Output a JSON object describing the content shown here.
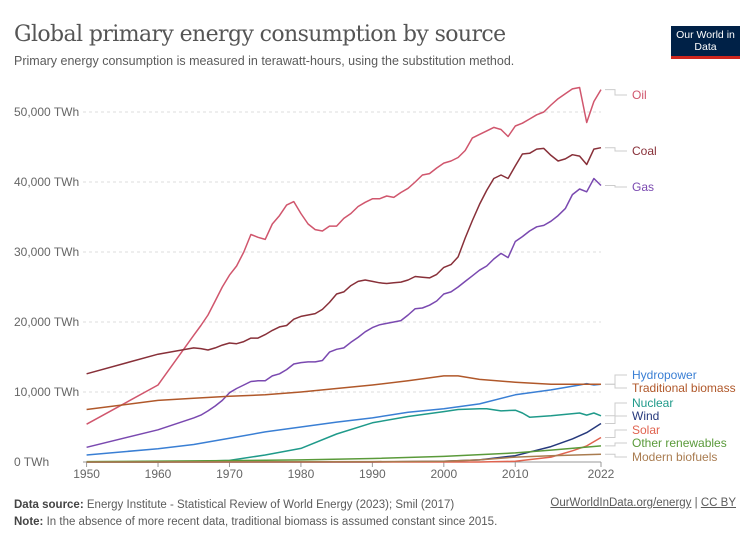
{
  "header": {
    "title": "Global primary energy consumption by source",
    "subtitle": "Primary energy consumption is measured in terawatt-hours, using the substitution method.",
    "logo_text": "Our World in Data"
  },
  "footer": {
    "source_label": "Data source:",
    "source_text": "Energy Institute - Statistical Review of World Energy (2023); Smil (2017)",
    "note_label": "Note:",
    "note_text": "In the absence of more recent data, traditional biomass is assumed constant since 2015.",
    "link": "OurWorldInData.org/energy",
    "separator": "|",
    "license": "CC BY"
  },
  "chart_data": {
    "type": "line",
    "title": "Global primary energy consumption by source",
    "xlabel": "",
    "ylabel": "",
    "xlim": [
      1949.5,
      2022
    ],
    "ylim": [
      0,
      55000
    ],
    "grid": true,
    "legend": "right (inline labels)",
    "x_ticks": [
      "1950",
      "1960",
      "1970",
      "1980",
      "1990",
      "2000",
      "2010",
      "2022"
    ],
    "y_ticks": [
      "0 TWh",
      "10,000 TWh",
      "20,000 TWh",
      "30,000 TWh",
      "40,000 TWh",
      "50,000 TWh"
    ],
    "series": [
      {
        "name": "Oil",
        "color": "#d0566d",
        "points": [
          [
            1950,
            5400
          ],
          [
            1960,
            11000
          ],
          [
            1965,
            18100
          ],
          [
            1966,
            19500
          ],
          [
            1967,
            21000
          ],
          [
            1968,
            23000
          ],
          [
            1969,
            25000
          ],
          [
            1970,
            26700
          ],
          [
            1971,
            28000
          ],
          [
            1972,
            30000
          ],
          [
            1973,
            32500
          ],
          [
            1974,
            32100
          ],
          [
            1975,
            31800
          ],
          [
            1976,
            34000
          ],
          [
            1977,
            35200
          ],
          [
            1978,
            36700
          ],
          [
            1979,
            37200
          ],
          [
            1980,
            35500
          ],
          [
            1981,
            34000
          ],
          [
            1982,
            33200
          ],
          [
            1983,
            33000
          ],
          [
            1984,
            33700
          ],
          [
            1985,
            33700
          ],
          [
            1986,
            34800
          ],
          [
            1987,
            35500
          ],
          [
            1988,
            36500
          ],
          [
            1989,
            37100
          ],
          [
            1990,
            37600
          ],
          [
            1991,
            37600
          ],
          [
            1992,
            38000
          ],
          [
            1993,
            37800
          ],
          [
            1994,
            38500
          ],
          [
            1995,
            39100
          ],
          [
            1996,
            40000
          ],
          [
            1997,
            41000
          ],
          [
            1998,
            41200
          ],
          [
            1999,
            42000
          ],
          [
            2000,
            42700
          ],
          [
            2001,
            43000
          ],
          [
            2002,
            43500
          ],
          [
            2003,
            44500
          ],
          [
            2004,
            46300
          ],
          [
            2005,
            46800
          ],
          [
            2006,
            47300
          ],
          [
            2007,
            47800
          ],
          [
            2008,
            47500
          ],
          [
            2009,
            46500
          ],
          [
            2010,
            48000
          ],
          [
            2011,
            48400
          ],
          [
            2012,
            49000
          ],
          [
            2013,
            49600
          ],
          [
            2014,
            50000
          ],
          [
            2015,
            51000
          ],
          [
            2016,
            51900
          ],
          [
            2017,
            52600
          ],
          [
            2018,
            53300
          ],
          [
            2019,
            53500
          ],
          [
            2020,
            48500
          ],
          [
            2021,
            51500
          ],
          [
            2022,
            53200
          ]
        ]
      },
      {
        "name": "Coal",
        "color": "#883039",
        "points": [
          [
            1950,
            12600
          ],
          [
            1960,
            15400
          ],
          [
            1965,
            16300
          ],
          [
            1966,
            16200
          ],
          [
            1967,
            16000
          ],
          [
            1968,
            16300
          ],
          [
            1969,
            16700
          ],
          [
            1970,
            17000
          ],
          [
            1971,
            16900
          ],
          [
            1972,
            17200
          ],
          [
            1973,
            17700
          ],
          [
            1974,
            17700
          ],
          [
            1975,
            18200
          ],
          [
            1976,
            18800
          ],
          [
            1977,
            19300
          ],
          [
            1978,
            19500
          ],
          [
            1979,
            20400
          ],
          [
            1980,
            20800
          ],
          [
            1981,
            21000
          ],
          [
            1982,
            21200
          ],
          [
            1983,
            21800
          ],
          [
            1984,
            22800
          ],
          [
            1985,
            24000
          ],
          [
            1986,
            24300
          ],
          [
            1987,
            25200
          ],
          [
            1988,
            25800
          ],
          [
            1989,
            26000
          ],
          [
            1990,
            25800
          ],
          [
            1991,
            25600
          ],
          [
            1992,
            25500
          ],
          [
            1993,
            25600
          ],
          [
            1994,
            25700
          ],
          [
            1995,
            26000
          ],
          [
            1996,
            26500
          ],
          [
            1997,
            26400
          ],
          [
            1998,
            26300
          ],
          [
            1999,
            26800
          ],
          [
            2000,
            27800
          ],
          [
            2001,
            28200
          ],
          [
            2002,
            29300
          ],
          [
            2003,
            32000
          ],
          [
            2004,
            34500
          ],
          [
            2005,
            36800
          ],
          [
            2006,
            38800
          ],
          [
            2007,
            40500
          ],
          [
            2008,
            41000
          ],
          [
            2009,
            40500
          ],
          [
            2010,
            42300
          ],
          [
            2011,
            44000
          ],
          [
            2012,
            44100
          ],
          [
            2013,
            44700
          ],
          [
            2014,
            44800
          ],
          [
            2015,
            43800
          ],
          [
            2016,
            43000
          ],
          [
            2017,
            43300
          ],
          [
            2018,
            43900
          ],
          [
            2019,
            43700
          ],
          [
            2020,
            42500
          ],
          [
            2021,
            44700
          ],
          [
            2022,
            44900
          ]
        ]
      },
      {
        "name": "Gas",
        "color": "#7a49b0",
        "points": [
          [
            1950,
            2100
          ],
          [
            1960,
            4600
          ],
          [
            1965,
            6300
          ],
          [
            1966,
            6700
          ],
          [
            1967,
            7300
          ],
          [
            1968,
            8000
          ],
          [
            1969,
            8800
          ],
          [
            1970,
            9900
          ],
          [
            1971,
            10500
          ],
          [
            1972,
            11000
          ],
          [
            1973,
            11500
          ],
          [
            1974,
            11600
          ],
          [
            1975,
            11600
          ],
          [
            1976,
            12300
          ],
          [
            1977,
            12600
          ],
          [
            1978,
            13200
          ],
          [
            1979,
            14000
          ],
          [
            1980,
            14200
          ],
          [
            1981,
            14300
          ],
          [
            1982,
            14300
          ],
          [
            1983,
            14500
          ],
          [
            1984,
            15700
          ],
          [
            1985,
            16100
          ],
          [
            1986,
            16300
          ],
          [
            1987,
            17100
          ],
          [
            1988,
            17800
          ],
          [
            1989,
            18600
          ],
          [
            1990,
            19200
          ],
          [
            1991,
            19600
          ],
          [
            1992,
            19800
          ],
          [
            1993,
            20000
          ],
          [
            1994,
            20200
          ],
          [
            1995,
            21000
          ],
          [
            1996,
            21900
          ],
          [
            1997,
            22000
          ],
          [
            1998,
            22400
          ],
          [
            1999,
            23000
          ],
          [
            2000,
            24000
          ],
          [
            2001,
            24300
          ],
          [
            2002,
            25000
          ],
          [
            2003,
            25800
          ],
          [
            2004,
            26600
          ],
          [
            2005,
            27400
          ],
          [
            2006,
            28000
          ],
          [
            2007,
            29000
          ],
          [
            2008,
            29800
          ],
          [
            2009,
            29200
          ],
          [
            2010,
            31500
          ],
          [
            2011,
            32200
          ],
          [
            2012,
            33000
          ],
          [
            2013,
            33600
          ],
          [
            2014,
            33800
          ],
          [
            2015,
            34400
          ],
          [
            2016,
            35200
          ],
          [
            2017,
            36200
          ],
          [
            2018,
            38200
          ],
          [
            2019,
            39000
          ],
          [
            2020,
            38600
          ],
          [
            2021,
            40500
          ],
          [
            2022,
            39500
          ]
        ]
      },
      {
        "name": "Hydropower",
        "color": "#3a7fd4",
        "points": [
          [
            1950,
            1000
          ],
          [
            1960,
            1900
          ],
          [
            1965,
            2500
          ],
          [
            1970,
            3400
          ],
          [
            1975,
            4300
          ],
          [
            1980,
            5000
          ],
          [
            1985,
            5700
          ],
          [
            1990,
            6300
          ],
          [
            1995,
            7100
          ],
          [
            2000,
            7600
          ],
          [
            2005,
            8300
          ],
          [
            2010,
            9600
          ],
          [
            2015,
            10300
          ],
          [
            2019,
            11000
          ],
          [
            2020,
            11200
          ],
          [
            2021,
            11000
          ],
          [
            2022,
            11100
          ]
        ]
      },
      {
        "name": "Traditional biomass",
        "color": "#b0582a",
        "points": [
          [
            1950,
            7500
          ],
          [
            1960,
            8800
          ],
          [
            1965,
            9100
          ],
          [
            1970,
            9400
          ],
          [
            1975,
            9600
          ],
          [
            1980,
            10000
          ],
          [
            1985,
            10500
          ],
          [
            1990,
            11000
          ],
          [
            1995,
            11600
          ],
          [
            2000,
            12300
          ],
          [
            2002,
            12300
          ],
          [
            2005,
            11800
          ],
          [
            2010,
            11400
          ],
          [
            2015,
            11100
          ],
          [
            2022,
            11100
          ]
        ]
      },
      {
        "name": "Nuclear",
        "color": "#1f9a8a",
        "points": [
          [
            1950,
            0
          ],
          [
            1960,
            0
          ],
          [
            1965,
            80
          ],
          [
            1970,
            230
          ],
          [
            1975,
            1000
          ],
          [
            1980,
            1950
          ],
          [
            1985,
            4000
          ],
          [
            1990,
            5600
          ],
          [
            1995,
            6500
          ],
          [
            2000,
            7200
          ],
          [
            2002,
            7500
          ],
          [
            2005,
            7600
          ],
          [
            2006,
            7600
          ],
          [
            2008,
            7300
          ],
          [
            2010,
            7400
          ],
          [
            2011,
            7000
          ],
          [
            2012,
            6400
          ],
          [
            2015,
            6600
          ],
          [
            2019,
            7000
          ],
          [
            2020,
            6700
          ],
          [
            2021,
            7000
          ],
          [
            2022,
            6600
          ]
        ]
      },
      {
        "name": "Wind",
        "color": "#26397c",
        "points": [
          [
            1950,
            0
          ],
          [
            1990,
            0
          ],
          [
            2000,
            100
          ],
          [
            2005,
            300
          ],
          [
            2010,
            900
          ],
          [
            2015,
            2200
          ],
          [
            2018,
            3300
          ],
          [
            2020,
            4200
          ],
          [
            2022,
            5500
          ]
        ]
      },
      {
        "name": "Solar",
        "color": "#e0634f",
        "points": [
          [
            1950,
            0
          ],
          [
            2005,
            0
          ],
          [
            2010,
            100
          ],
          [
            2015,
            700
          ],
          [
            2018,
            1600
          ],
          [
            2020,
            2300
          ],
          [
            2022,
            3500
          ]
        ]
      },
      {
        "name": "Other renewables",
        "color": "#5a9a3a",
        "points": [
          [
            1950,
            50
          ],
          [
            1965,
            150
          ],
          [
            1980,
            300
          ],
          [
            1990,
            500
          ],
          [
            2000,
            800
          ],
          [
            2010,
            1300
          ],
          [
            2015,
            1700
          ],
          [
            2022,
            2300
          ]
        ]
      },
      {
        "name": "Modern biofuels",
        "color": "#a97c50",
        "points": [
          [
            1950,
            0
          ],
          [
            1990,
            50
          ],
          [
            2000,
            100
          ],
          [
            2005,
            300
          ],
          [
            2010,
            700
          ],
          [
            2015,
            900
          ],
          [
            2022,
            1100
          ]
        ]
      }
    ]
  }
}
